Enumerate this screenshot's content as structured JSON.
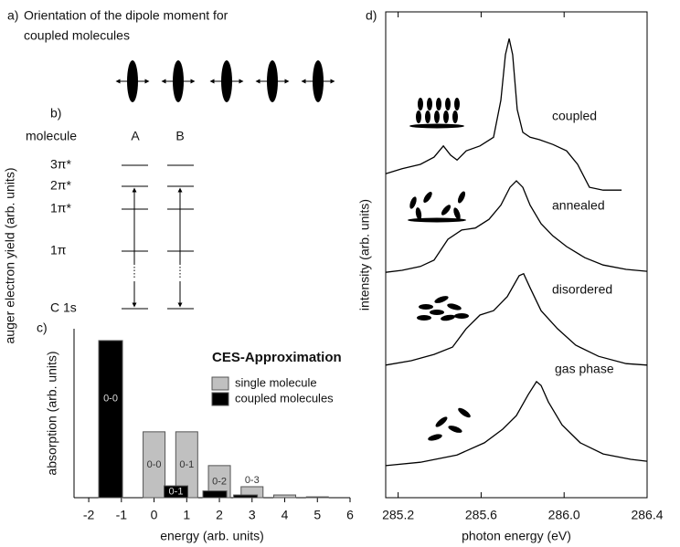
{
  "panel_a": {
    "label": "a)",
    "text_lines": [
      "Orientation of the dipole moment for",
      "coupled molecules"
    ]
  },
  "panel_b": {
    "label": "b)",
    "column_header": "molecule",
    "columns": [
      "A",
      "B"
    ],
    "levels": [
      "3π*",
      "2π*",
      "1π*",
      "1π",
      "C 1s"
    ]
  },
  "left_axis_label": "auger electron yield (arb. units)",
  "chart_data": [
    {
      "type": "bar",
      "label": "c)",
      "title": "CES-Approximation",
      "x_label": "energy (arb. units)",
      "y_label": "absorption (arb. units)",
      "xlim": [
        -2.45,
        6
      ],
      "xticks": [
        -2,
        -1,
        0,
        1,
        2,
        3,
        4,
        5,
        6
      ],
      "ylim": [
        0,
        1
      ],
      "series": [
        {
          "name": "single molecule",
          "color": "#c0c0c0",
          "x": [
            0,
            1,
            2,
            3,
            4,
            5
          ],
          "values": [
            0.39,
            0.39,
            0.19,
            0.065,
            0.016,
            0.005
          ],
          "labels": [
            "0-0",
            "0-1",
            "0-2",
            "0-3",
            null,
            null
          ]
        },
        {
          "name": "coupled molecules",
          "color": "#000000",
          "x": [
            -1.33,
            0.67,
            1.86,
            2.8
          ],
          "values": [
            0.93,
            0.07,
            0.04,
            0.016
          ],
          "labels": [
            "0-0",
            "0-1",
            null,
            null
          ]
        }
      ]
    },
    {
      "type": "line",
      "label": "d)",
      "x_label": "photon energy (eV)",
      "y_label": "intensity (arb. units)",
      "xlim": [
        285.14,
        286.4
      ],
      "xticks": [
        285.2,
        285.6,
        {
          "value": 286,
          "label": "286.0"
        },
        286.4
      ],
      "ylim": [
        0,
        10
      ],
      "series": [
        {
          "name": "coupled",
          "color": "#000000",
          "x": [
            285.14,
            285.219,
            285.307,
            285.373,
            285.418,
            285.453,
            285.484,
            285.528,
            285.594,
            285.66,
            285.695,
            285.717,
            285.735,
            285.752,
            285.774,
            285.801,
            285.836,
            285.88,
            285.946,
            286.012,
            286.065,
            286.122,
            286.188,
            286.277
          ],
          "values": [
            6.67,
            6.77,
            6.86,
            7.01,
            7.24,
            7.05,
            6.95,
            7.14,
            7.24,
            7.42,
            8.18,
            9.12,
            9.45,
            9.12,
            7.99,
            7.52,
            7.42,
            7.37,
            7.27,
            7.14,
            6.86,
            6.39,
            6.33,
            6.33
          ]
        },
        {
          "name": "annealed",
          "color": "#000000",
          "x": [
            285.14,
            285.219,
            285.307,
            285.373,
            285.44,
            285.506,
            285.572,
            285.638,
            285.695,
            285.739,
            285.77,
            285.801,
            285.836,
            285.889,
            285.946,
            286.012,
            286.1,
            286.188,
            286.299,
            286.4
          ],
          "values": [
            4.64,
            4.68,
            4.76,
            4.89,
            5.32,
            5.51,
            5.55,
            5.73,
            6.02,
            6.39,
            6.52,
            6.39,
            6.02,
            5.64,
            5.39,
            5.17,
            4.94,
            4.79,
            4.7,
            4.66
          ]
        },
        {
          "name": "disordered",
          "color": "#000000",
          "x": [
            285.14,
            285.263,
            285.373,
            285.462,
            285.528,
            285.594,
            285.66,
            285.726,
            285.783,
            285.805,
            285.836,
            285.889,
            285.968,
            286.056,
            286.166,
            286.299,
            286.4
          ],
          "values": [
            2.73,
            2.82,
            2.95,
            3.1,
            3.48,
            3.76,
            3.85,
            4.14,
            4.57,
            4.61,
            4.32,
            3.85,
            3.48,
            3.14,
            2.91,
            2.76,
            2.73
          ]
        },
        {
          "name": "gas phase",
          "color": "#000000",
          "x": [
            285.14,
            285.307,
            285.484,
            285.616,
            285.704,
            285.77,
            285.827,
            285.867,
            285.889,
            285.924,
            285.99,
            286.078,
            286.188,
            286.321,
            286.4
          ],
          "values": [
            0.66,
            0.73,
            0.88,
            1.13,
            1.41,
            1.69,
            2.12,
            2.39,
            2.31,
            1.97,
            1.5,
            1.13,
            0.9,
            0.79,
            0.75
          ]
        }
      ]
    }
  ]
}
